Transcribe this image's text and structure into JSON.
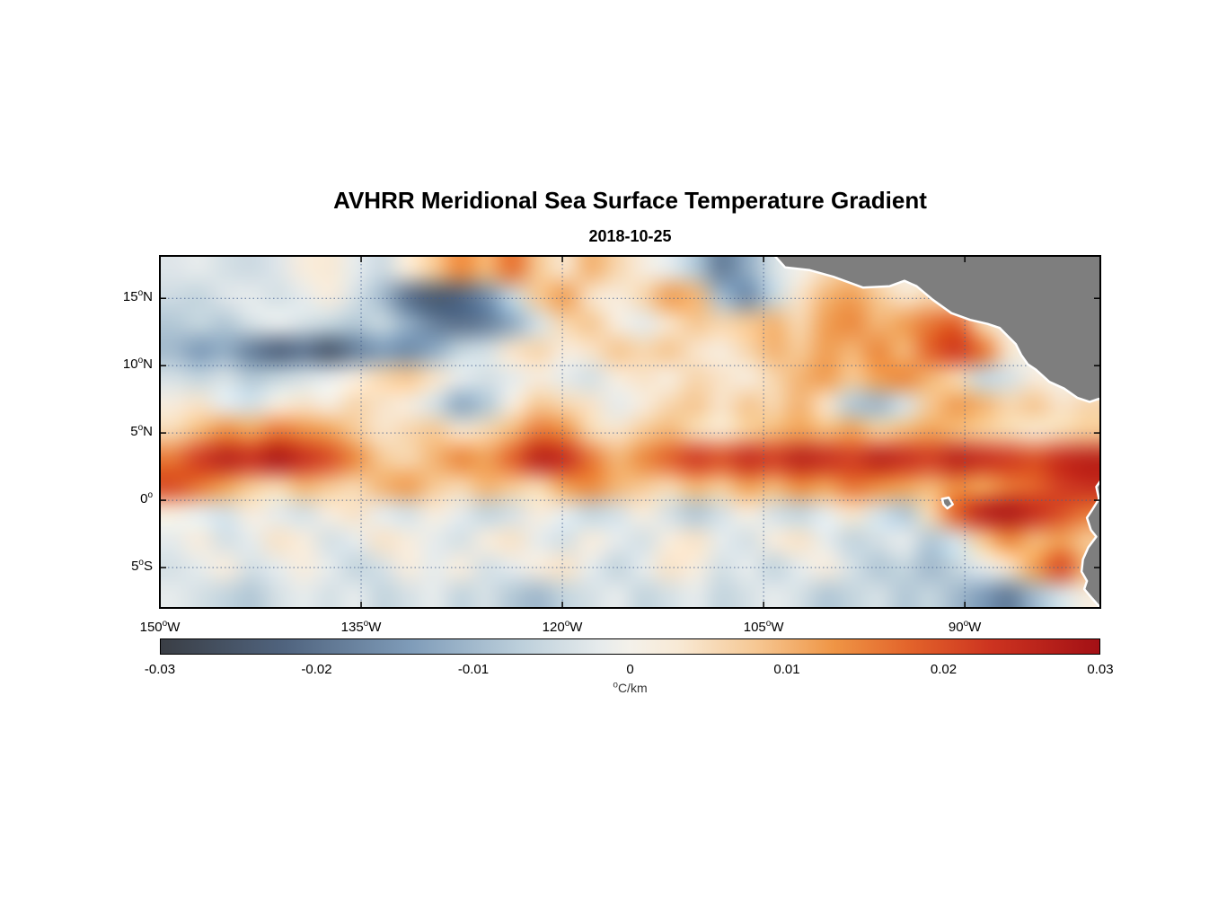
{
  "chart_data": {
    "type": "heatmap",
    "title": "AVHRR Meridional Sea Surface Temperature Gradient",
    "subtitle": "2018-10-25",
    "axes": {
      "degree_symbol": "o",
      "grid": true,
      "x": {
        "range": [
          -150,
          -79.9
        ],
        "ticks": [
          {
            "num": "150",
            "suffix": "W",
            "value": -150
          },
          {
            "num": "135",
            "suffix": "W",
            "value": -135
          },
          {
            "num": "120",
            "suffix": "W",
            "value": -120
          },
          {
            "num": "105",
            "suffix": "W",
            "value": -105
          },
          {
            "num": "90",
            "suffix": "W",
            "value": -90
          }
        ]
      },
      "y": {
        "range": [
          -8.0,
          18.15
        ],
        "ticks": [
          {
            "num": "15",
            "suffix": "N",
            "value": 15
          },
          {
            "num": "10",
            "suffix": "N",
            "value": 10
          },
          {
            "num": "5",
            "suffix": "N",
            "value": 5
          },
          {
            "num": "0",
            "suffix": "",
            "value": 0
          },
          {
            "num": "5",
            "suffix": "S",
            "value": -5
          }
        ]
      }
    },
    "colorbar": {
      "range": [
        -0.03,
        0.03
      ],
      "unit": {
        "degree": true,
        "text": "C/km"
      },
      "ticks": [
        {
          "label": "-0.03",
          "value": -0.03
        },
        {
          "label": "-0.02",
          "value": -0.02
        },
        {
          "label": "-0.01",
          "value": -0.01
        },
        {
          "label": "0",
          "value": 0
        },
        {
          "label": "0.01",
          "value": 0.01
        },
        {
          "label": "0.02",
          "value": 0.02
        },
        {
          "label": "0.03",
          "value": 0.03
        }
      ],
      "stops": [
        {
          "v": -0.03,
          "c": "#3a3e45"
        },
        {
          "v": -0.022,
          "c": "#50647f"
        },
        {
          "v": -0.014,
          "c": "#7f9cb9"
        },
        {
          "v": -0.007,
          "c": "#bccfdb"
        },
        {
          "v": -0.002,
          "c": "#e6ebec"
        },
        {
          "v": 0.0,
          "c": "#f4f1ea"
        },
        {
          "v": 0.003,
          "c": "#f8ead6"
        },
        {
          "v": 0.008,
          "c": "#f6c894"
        },
        {
          "v": 0.013,
          "c": "#ef9545"
        },
        {
          "v": 0.018,
          "c": "#e2622a"
        },
        {
          "v": 0.023,
          "c": "#cd3420"
        },
        {
          "v": 0.03,
          "c": "#a31015"
        }
      ]
    },
    "grid_values_scale": 0.001,
    "lon_centers_start": -149,
    "lon_step": 2,
    "lat_centers_start": 17,
    "lat_step": -2,
    "values": [
      [
        -3,
        -2,
        -4,
        -5,
        -3,
        2,
        3,
        -2,
        -5,
        3,
        8,
        14,
        10,
        16,
        8,
        4,
        10,
        6,
        2,
        -2,
        -8,
        -18,
        -12,
        -4,
        0,
        5,
        8,
        3,
        0,
        0,
        0,
        0,
        0,
        0,
        0,
        0
      ],
      [
        -5,
        -6,
        -3,
        -2,
        -4,
        -2,
        2,
        -4,
        -10,
        -20,
        -24,
        -22,
        -16,
        -6,
        8,
        12,
        4,
        2,
        6,
        12,
        10,
        -10,
        -16,
        -6,
        4,
        10,
        12,
        8,
        4,
        6,
        4,
        0,
        0,
        0,
        0,
        0
      ],
      [
        -8,
        -6,
        -8,
        -4,
        -2,
        -4,
        -6,
        -8,
        -6,
        -12,
        -18,
        -20,
        -18,
        -12,
        -4,
        6,
        8,
        2,
        -2,
        4,
        8,
        6,
        8,
        10,
        6,
        12,
        14,
        10,
        12,
        16,
        18,
        6,
        0,
        0,
        0,
        0
      ],
      [
        -10,
        -14,
        -12,
        -18,
        -22,
        -20,
        -24,
        -18,
        -14,
        -16,
        -12,
        -6,
        -4,
        4,
        6,
        2,
        4,
        8,
        6,
        8,
        4,
        2,
        6,
        10,
        8,
        12,
        10,
        14,
        10,
        18,
        22,
        16,
        4,
        0,
        0,
        0
      ],
      [
        -4,
        -6,
        -4,
        -8,
        -6,
        -4,
        -2,
        2,
        6,
        8,
        4,
        -2,
        -4,
        -2,
        2,
        -2,
        -4,
        2,
        4,
        2,
        6,
        4,
        2,
        6,
        10,
        12,
        8,
        12,
        14,
        10,
        6,
        -6,
        -4,
        2,
        0,
        0
      ],
      [
        2,
        4,
        -2,
        -4,
        2,
        4,
        2,
        6,
        4,
        2,
        -4,
        -12,
        -8,
        2,
        8,
        6,
        4,
        -2,
        2,
        6,
        8,
        4,
        8,
        6,
        10,
        4,
        -8,
        -10,
        -4,
        8,
        12,
        10,
        6,
        8,
        4,
        6
      ],
      [
        6,
        10,
        14,
        12,
        16,
        14,
        12,
        8,
        4,
        6,
        8,
        4,
        6,
        10,
        16,
        14,
        6,
        4,
        8,
        10,
        6,
        4,
        8,
        10,
        12,
        10,
        12,
        8,
        10,
        12,
        10,
        8,
        6,
        4,
        6,
        8
      ],
      [
        16,
        22,
        26,
        24,
        28,
        24,
        20,
        14,
        8,
        6,
        10,
        14,
        12,
        18,
        26,
        24,
        16,
        10,
        14,
        18,
        22,
        20,
        24,
        22,
        26,
        24,
        22,
        26,
        24,
        22,
        26,
        24,
        22,
        20,
        24,
        26
      ],
      [
        20,
        16,
        12,
        8,
        6,
        10,
        8,
        6,
        10,
        12,
        8,
        6,
        10,
        8,
        6,
        12,
        14,
        10,
        8,
        6,
        10,
        8,
        12,
        10,
        14,
        12,
        16,
        14,
        12,
        10,
        14,
        12,
        16,
        18,
        22,
        24
      ],
      [
        2,
        -2,
        -4,
        2,
        -2,
        -4,
        2,
        4,
        -2,
        -4,
        2,
        -2,
        -6,
        -4,
        2,
        -2,
        -6,
        -4,
        2,
        -4,
        -8,
        -4,
        2,
        -4,
        -6,
        -2,
        4,
        -4,
        -8,
        6,
        18,
        26,
        28,
        24,
        20,
        16
      ],
      [
        -2,
        2,
        -4,
        -2,
        4,
        2,
        -4,
        -2,
        4,
        2,
        -2,
        -4,
        2,
        4,
        -2,
        -4,
        2,
        -2,
        -4,
        2,
        4,
        -2,
        -4,
        2,
        4,
        -2,
        -6,
        -4,
        -2,
        -8,
        -4,
        8,
        14,
        10,
        12,
        8
      ],
      [
        -4,
        -2,
        2,
        -4,
        -2,
        2,
        -2,
        -6,
        -4,
        2,
        -2,
        2,
        -4,
        -2,
        2,
        4,
        -2,
        -6,
        -2,
        4,
        2,
        -4,
        -2,
        -6,
        -2,
        2,
        -4,
        -8,
        -6,
        -10,
        -6,
        -2,
        4,
        12,
        20,
        10
      ],
      [
        -2,
        -4,
        -6,
        -8,
        -4,
        -2,
        -4,
        -2,
        -6,
        -4,
        -2,
        -6,
        -4,
        -8,
        -10,
        -6,
        -4,
        -2,
        -6,
        -4,
        -2,
        -6,
        -4,
        -2,
        -4,
        -8,
        -6,
        -4,
        -8,
        -6,
        -10,
        -14,
        -18,
        -10,
        -4,
        2
      ]
    ],
    "land": {
      "color": "#7e7e7e",
      "edge": "#ffffff",
      "polygons": [
        [
          [
            -104.3,
            18.3
          ],
          [
            -103.4,
            17.3
          ],
          [
            -101.6,
            17.1
          ],
          [
            -99.8,
            16.6
          ],
          [
            -97.6,
            15.8
          ],
          [
            -95.6,
            15.9
          ],
          [
            -94.5,
            16.3
          ],
          [
            -93.6,
            15.9
          ],
          [
            -92.4,
            14.9
          ],
          [
            -91.0,
            13.9
          ],
          [
            -89.6,
            13.4
          ],
          [
            -88.3,
            13.1
          ],
          [
            -87.4,
            12.8
          ],
          [
            -86.8,
            12.2
          ],
          [
            -86.2,
            11.6
          ],
          [
            -85.8,
            10.8
          ],
          [
            -85.3,
            10.1
          ],
          [
            -84.7,
            9.7
          ],
          [
            -83.7,
            8.8
          ],
          [
            -82.6,
            8.3
          ],
          [
            -81.6,
            7.6
          ],
          [
            -80.7,
            7.3
          ],
          [
            -80.1,
            7.5
          ],
          [
            -79.7,
            7.6
          ],
          [
            -79.7,
            18.3
          ]
        ],
        [
          [
            -79.7,
            1.7
          ],
          [
            -80.2,
            1.0
          ],
          [
            -80.0,
            0.1
          ],
          [
            -80.5,
            -0.7
          ],
          [
            -80.9,
            -1.3
          ],
          [
            -80.6,
            -2.2
          ],
          [
            -80.2,
            -2.7
          ],
          [
            -80.8,
            -3.5
          ],
          [
            -81.2,
            -4.4
          ],
          [
            -81.3,
            -5.3
          ],
          [
            -80.9,
            -6.0
          ],
          [
            -81.1,
            -6.6
          ],
          [
            -80.5,
            -7.3
          ],
          [
            -79.7,
            -8.2
          ]
        ],
        [
          [
            -91.7,
            0.1
          ],
          [
            -91.2,
            0.2
          ],
          [
            -90.9,
            -0.3
          ],
          [
            -91.3,
            -0.6
          ],
          [
            -91.6,
            -0.3
          ]
        ]
      ]
    },
    "grid_line_color": "#44608f"
  }
}
